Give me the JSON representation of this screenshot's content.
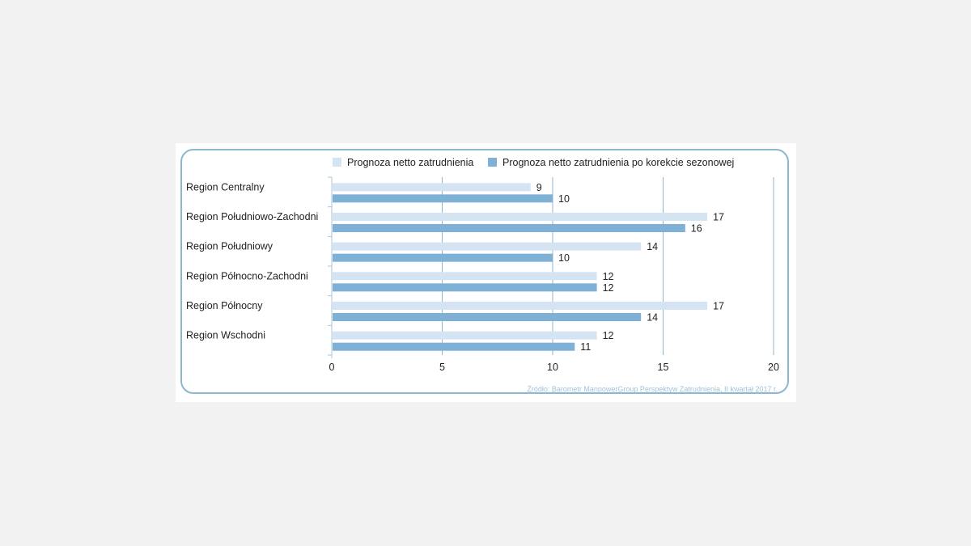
{
  "chart_data": {
    "type": "bar",
    "orientation": "horizontal",
    "categories": [
      "Region Centralny",
      "Region Południowo-Zachodni",
      "Region Południowy",
      "Region Północno-Zachodni",
      "Region Północny",
      "Region Wschodni"
    ],
    "series": [
      {
        "name": "Prognoza netto zatrudnienia",
        "color": "#d4e4f3",
        "values": [
          9,
          17,
          14,
          12,
          17,
          12
        ]
      },
      {
        "name": "Prognoza netto zatrudnienia po korekcie sezonowej",
        "color": "#7fb0d6",
        "values": [
          10,
          16,
          10,
          12,
          14,
          11
        ]
      }
    ],
    "xlim": [
      0,
      20
    ],
    "xticks": [
      0,
      5,
      10,
      15,
      20
    ],
    "grid": true,
    "legend": "top",
    "source": "Źródło: Barometr ManpowerGroup Perspektyw Zatrudnienia, II kwartał 2017 r."
  },
  "colors": {
    "frame": "#8db6cf",
    "grid": "#8db6cf",
    "axis": "#a9c6da"
  }
}
